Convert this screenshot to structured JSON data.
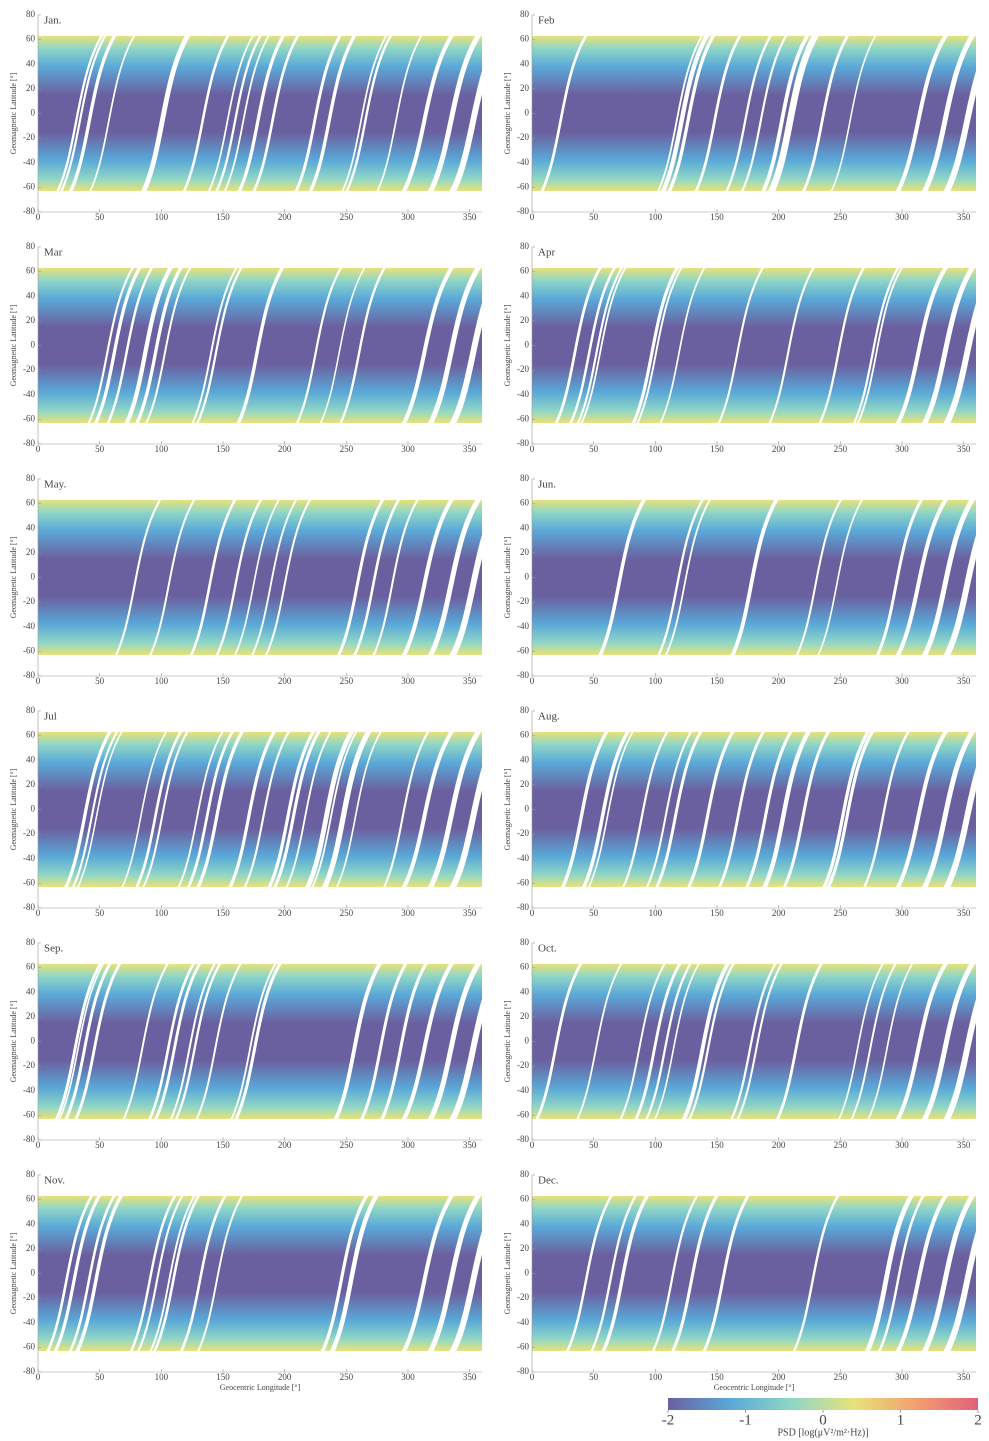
{
  "chart_data": [
    {
      "type": "heatmap",
      "title": "Jan.",
      "ylabel": "Geomagnetic Latitude [°]",
      "xlim": [
        0,
        360
      ],
      "xticks": [
        0,
        50,
        100,
        150,
        200,
        250,
        300,
        350
      ],
      "ylim": [
        -80,
        80
      ],
      "yticks": [
        -80,
        -60,
        -40,
        -20,
        0,
        20,
        40,
        60,
        80
      ],
      "data_ylim": [
        -63,
        63
      ]
    },
    {
      "type": "heatmap",
      "title": "Feb",
      "ylabel": "Geomagnetic Latitude [°]",
      "xlim": [
        0,
        360
      ],
      "xticks": [
        0,
        50,
        100,
        150,
        200,
        250,
        300,
        350
      ],
      "ylim": [
        -80,
        80
      ],
      "yticks": [
        -80,
        -60,
        -40,
        -20,
        0,
        20,
        40,
        60,
        80
      ],
      "data_ylim": [
        -63,
        63
      ]
    },
    {
      "type": "heatmap",
      "title": "Mar",
      "ylabel": "Geomagnetic Latitude [°]",
      "xlim": [
        0,
        360
      ],
      "xticks": [
        0,
        50,
        100,
        150,
        200,
        250,
        300,
        350
      ],
      "ylim": [
        -80,
        80
      ],
      "yticks": [
        -80,
        -60,
        -40,
        -20,
        0,
        20,
        40,
        60,
        80
      ],
      "data_ylim": [
        -63,
        63
      ]
    },
    {
      "type": "heatmap",
      "title": "Apr",
      "ylabel": "Geomagnetic Latitude [°]",
      "xlim": [
        0,
        360
      ],
      "xticks": [
        0,
        50,
        100,
        150,
        200,
        250,
        300,
        350
      ],
      "ylim": [
        -80,
        80
      ],
      "yticks": [
        -80,
        -60,
        -40,
        -20,
        0,
        20,
        40,
        60,
        80
      ],
      "data_ylim": [
        -63,
        63
      ]
    },
    {
      "type": "heatmap",
      "title": "May.",
      "ylabel": "Geomagnetic Latitude [°]",
      "xlim": [
        0,
        360
      ],
      "xticks": [
        0,
        50,
        100,
        150,
        200,
        250,
        300,
        350
      ],
      "ylim": [
        -80,
        80
      ],
      "yticks": [
        -80,
        -60,
        -40,
        -20,
        0,
        20,
        40,
        60,
        80
      ],
      "data_ylim": [
        -63,
        63
      ]
    },
    {
      "type": "heatmap",
      "title": "Jun.",
      "ylabel": "Geomagnetic Latitude [°]",
      "xlim": [
        0,
        360
      ],
      "xticks": [
        0,
        50,
        100,
        150,
        200,
        250,
        300,
        350
      ],
      "ylim": [
        -80,
        80
      ],
      "yticks": [
        -80,
        -60,
        -40,
        -20,
        0,
        20,
        40,
        60,
        80
      ],
      "data_ylim": [
        -63,
        63
      ]
    },
    {
      "type": "heatmap",
      "title": "Jul",
      "ylabel": "Geomagnetic Latitude [°]",
      "xlim": [
        0,
        360
      ],
      "xticks": [
        0,
        50,
        100,
        150,
        200,
        250,
        300,
        350
      ],
      "ylim": [
        -80,
        80
      ],
      "yticks": [
        -80,
        -60,
        -40,
        -20,
        0,
        20,
        40,
        60,
        80
      ],
      "data_ylim": [
        -63,
        63
      ]
    },
    {
      "type": "heatmap",
      "title": "Aug.",
      "ylabel": "Geomagnetic Latitude [°]",
      "xlim": [
        0,
        360
      ],
      "xticks": [
        0,
        50,
        100,
        150,
        200,
        250,
        300,
        350
      ],
      "ylim": [
        -80,
        80
      ],
      "yticks": [
        -80,
        -60,
        -40,
        -20,
        0,
        20,
        40,
        60,
        80
      ],
      "data_ylim": [
        -63,
        63
      ]
    },
    {
      "type": "heatmap",
      "title": "Sep.",
      "ylabel": "Geomagnetic Latitude [°]",
      "xlim": [
        0,
        360
      ],
      "xticks": [
        0,
        50,
        100,
        150,
        200,
        250,
        300,
        350
      ],
      "ylim": [
        -80,
        80
      ],
      "yticks": [
        -80,
        -60,
        -40,
        -20,
        0,
        20,
        40,
        60,
        80
      ],
      "data_ylim": [
        -63,
        63
      ]
    },
    {
      "type": "heatmap",
      "title": "Oct.",
      "ylabel": "Geomagnetic Latitude [°]",
      "xlim": [
        0,
        360
      ],
      "xticks": [
        0,
        50,
        100,
        150,
        200,
        250,
        300,
        350
      ],
      "ylim": [
        -80,
        80
      ],
      "yticks": [
        -80,
        -60,
        -40,
        -20,
        0,
        20,
        40,
        60,
        80
      ],
      "data_ylim": [
        -63,
        63
      ]
    },
    {
      "type": "heatmap",
      "title": "Nov.",
      "ylabel": "Geomagnetic Latitude [°]",
      "xlabel": "Geocentric Longitude [°]",
      "xlim": [
        0,
        360
      ],
      "xticks": [
        0,
        50,
        100,
        150,
        200,
        250,
        300,
        350
      ],
      "ylim": [
        -80,
        80
      ],
      "yticks": [
        -80,
        -60,
        -40,
        -20,
        0,
        20,
        40,
        60,
        80
      ],
      "data_ylim": [
        -63,
        63
      ]
    },
    {
      "type": "heatmap",
      "title": "Dec.",
      "ylabel": "Geomagnetic Latitude [°]",
      "xlabel": "Geocentric Longitude [°]",
      "xlim": [
        0,
        360
      ],
      "xticks": [
        0,
        50,
        100,
        150,
        200,
        250,
        300,
        350
      ],
      "ylim": [
        -80,
        80
      ],
      "yticks": [
        -80,
        -60,
        -40,
        -20,
        0,
        20,
        40,
        60,
        80
      ],
      "data_ylim": [
        -63,
        63
      ]
    }
  ],
  "colorbar": {
    "label": "PSD [log(μV²/m²·Hz)]",
    "lim": [
      -2,
      2
    ],
    "ticks": [
      -2,
      -1,
      0,
      1,
      2
    ],
    "colors": [
      "#6b609f",
      "#5aa8d8",
      "#8fd6c6",
      "#e8e27a",
      "#f0a070",
      "#e0607a"
    ]
  }
}
